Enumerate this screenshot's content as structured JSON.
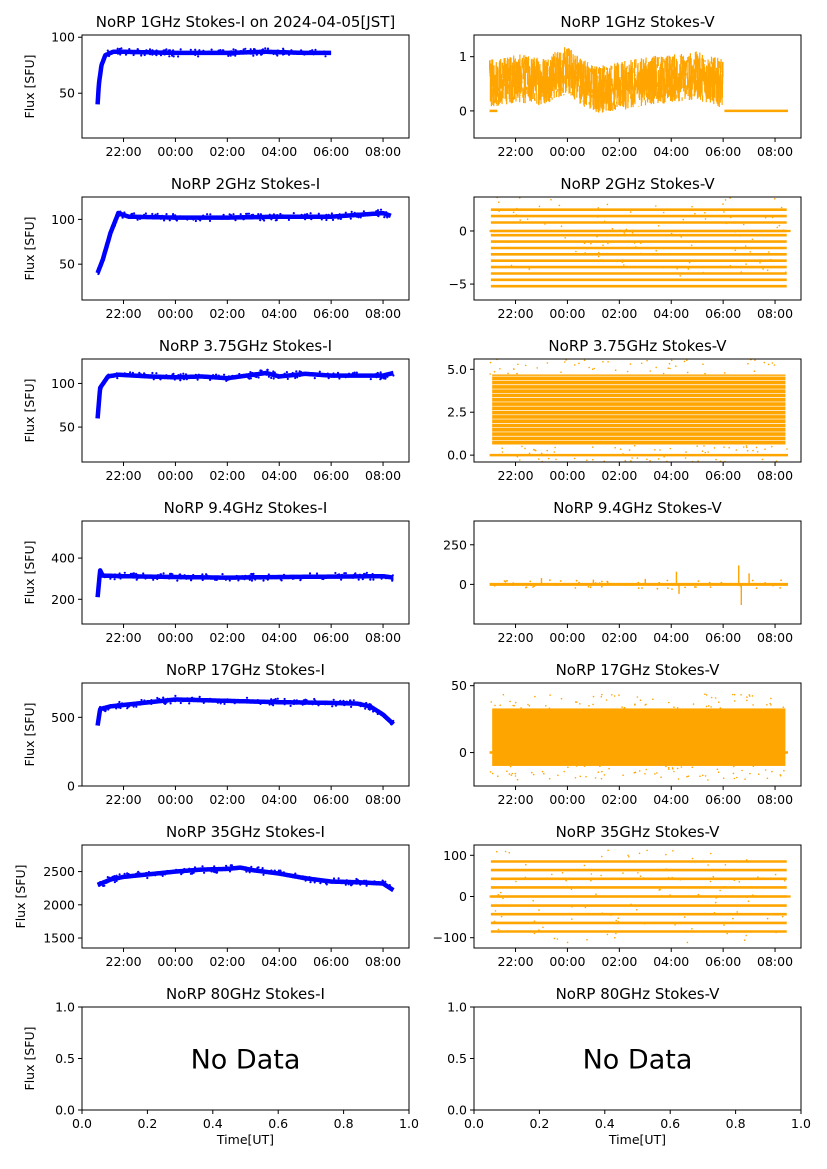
{
  "figure": {
    "xlabel": "Time[UT]",
    "ylabel": "Flux [SFU]",
    "nodata_text": "No Data",
    "colors": {
      "stokes_i": "#0000ff",
      "stokes_v": "#ffa500",
      "axes": "#000000",
      "background": "#ffffff"
    }
  },
  "chart_data": [
    {
      "id": "i1",
      "type": "scatter",
      "title": "NoRP 1GHz Stokes-I on 2024-04-05[JST]",
      "ylabel": "Flux [SFU]",
      "xlim": [
        20.4,
        33.0
      ],
      "ylim": [
        10,
        102
      ],
      "yticks": [
        50,
        100
      ],
      "ytick_labels": [
        "50",
        "100"
      ],
      "xticks": [
        22,
        24,
        26,
        28,
        30,
        32
      ],
      "xtick_labels": [
        "22:00",
        "00:00",
        "02:00",
        "04:00",
        "06:00",
        "08:00"
      ],
      "data_range": [
        21.0,
        30.0
      ],
      "series": [
        {
          "x": [
            21.0,
            21.05,
            21.15,
            21.3,
            21.6,
            22.0,
            24.0,
            26.0,
            27.5,
            29.0,
            30.0
          ],
          "y": [
            40,
            58,
            75,
            84,
            87,
            87,
            86,
            86,
            87,
            86,
            86
          ]
        }
      ]
    },
    {
      "id": "v1",
      "type": "scatter",
      "title": "NoRP 1GHz Stokes-V",
      "ylabel": "",
      "xlim": [
        20.4,
        33.0
      ],
      "ylim": [
        -0.5,
        1.4
      ],
      "yticks": [
        0,
        1
      ],
      "ytick_labels": [
        "0",
        "1"
      ],
      "xticks": [
        22,
        24,
        26,
        28,
        30,
        32
      ],
      "xtick_labels": [
        "22:00",
        "00:00",
        "02:00",
        "04:00",
        "06:00",
        "08:00"
      ],
      "data_range": [
        21.0,
        30.0
      ],
      "series": [
        {
          "x": [
            21.0,
            22.0,
            23.0,
            24.0,
            25.0,
            26.0,
            27.0,
            28.0,
            29.0,
            30.0,
            30.05,
            32.5
          ],
          "y": [
            0.5,
            0.6,
            0.55,
            0.75,
            0.4,
            0.45,
            0.55,
            0.6,
            0.65,
            0.5,
            0.0,
            0.0
          ]
        }
      ]
    },
    {
      "id": "i2",
      "type": "scatter",
      "title": "NoRP 2GHz Stokes-I",
      "ylabel": "Flux [SFU]",
      "xlim": [
        20.4,
        33.0
      ],
      "ylim": [
        10,
        125
      ],
      "yticks": [
        50,
        100
      ],
      "ytick_labels": [
        "50",
        "100"
      ],
      "xticks": [
        22,
        24,
        26,
        28,
        30,
        32
      ],
      "xtick_labels": [
        "22:00",
        "00:00",
        "02:00",
        "04:00",
        "06:00",
        "08:00"
      ],
      "data_range": [
        21.0,
        32.3
      ],
      "series": [
        {
          "x": [
            21.0,
            21.2,
            21.5,
            21.8,
            22.2,
            24.0,
            26.0,
            28.0,
            30.0,
            32.0,
            32.3
          ],
          "y": [
            40,
            55,
            85,
            107,
            103,
            102,
            102,
            103,
            103,
            107,
            104
          ]
        }
      ]
    },
    {
      "id": "v2",
      "type": "scatter",
      "title": "NoRP 2GHz Stokes-V",
      "ylabel": "",
      "xlim": [
        20.4,
        33.0
      ],
      "ylim": [
        -6.5,
        3.2
      ],
      "yticks": [
        -5,
        0
      ],
      "ytick_labels": [
        "−5",
        "0"
      ],
      "xticks": [
        22,
        24,
        26,
        28,
        30,
        32
      ],
      "xtick_labels": [
        "22:00",
        "00:00",
        "02:00",
        "04:00",
        "06:00",
        "08:00"
      ],
      "data_range": [
        21.0,
        32.5
      ],
      "series": [
        {
          "levels": [
            2.0,
            1.4,
            0.8,
            0.0,
            -0.4,
            -1.0,
            -1.6,
            -2.2,
            -2.8,
            -3.4,
            -4.0,
            -4.6,
            -5.2
          ]
        }
      ]
    },
    {
      "id": "i3",
      "type": "scatter",
      "title": "NoRP 3.75GHz Stokes-I",
      "ylabel": "Flux [SFU]",
      "xlim": [
        20.4,
        33.0
      ],
      "ylim": [
        10,
        128
      ],
      "yticks": [
        50,
        100
      ],
      "ytick_labels": [
        "50",
        "100"
      ],
      "xticks": [
        22,
        24,
        26,
        28,
        30,
        32
      ],
      "xtick_labels": [
        "22:00",
        "00:00",
        "02:00",
        "04:00",
        "06:00",
        "08:00"
      ],
      "data_range": [
        21.0,
        32.4
      ],
      "series": [
        {
          "x": [
            21.0,
            21.1,
            21.4,
            21.8,
            23.0,
            24.0,
            25.0,
            26.0,
            27.0,
            27.5,
            28.0,
            29.0,
            30.0,
            31.0,
            32.0,
            32.4
          ],
          "y": [
            60,
            95,
            108,
            110,
            108,
            107,
            108,
            106,
            110,
            112,
            108,
            111,
            109,
            109,
            109,
            112
          ]
        }
      ]
    },
    {
      "id": "v3",
      "type": "scatter",
      "title": "NoRP 3.75GHz Stokes-V",
      "ylabel": "",
      "xlim": [
        20.4,
        33.0
      ],
      "ylim": [
        -0.4,
        5.6
      ],
      "yticks": [
        0.0,
        2.5,
        5.0
      ],
      "ytick_labels": [
        "0.0",
        "2.5",
        "5.0"
      ],
      "xticks": [
        22,
        24,
        26,
        28,
        30,
        32
      ],
      "xtick_labels": [
        "22:00",
        "00:00",
        "02:00",
        "04:00",
        "06:00",
        "08:00"
      ],
      "data_range": [
        21.0,
        32.5
      ],
      "series": [
        {
          "band": [
            0.6,
            4.7
          ]
        }
      ]
    },
    {
      "id": "i4",
      "type": "scatter",
      "title": "NoRP 9.4GHz Stokes-I",
      "ylabel": "Flux [SFU]",
      "xlim": [
        20.4,
        33.0
      ],
      "ylim": [
        80,
        580
      ],
      "yticks": [
        200,
        400
      ],
      "ytick_labels": [
        "200",
        "400"
      ],
      "xticks": [
        22,
        24,
        26,
        28,
        30,
        32
      ],
      "xtick_labels": [
        "22:00",
        "00:00",
        "02:00",
        "04:00",
        "06:00",
        "08:00"
      ],
      "data_range": [
        21.0,
        32.4
      ],
      "series": [
        {
          "x": [
            21.0,
            21.1,
            21.2,
            22.0,
            24.0,
            26.0,
            28.0,
            30.0,
            32.0,
            32.4
          ],
          "y": [
            210,
            340,
            315,
            312,
            308,
            305,
            308,
            310,
            312,
            305
          ]
        }
      ]
    },
    {
      "id": "v4",
      "type": "scatter",
      "title": "NoRP 9.4GHz Stokes-V",
      "ylabel": "",
      "xlim": [
        20.4,
        33.0
      ],
      "ylim": [
        -250,
        400
      ],
      "yticks": [
        0,
        250
      ],
      "ytick_labels": [
        "0",
        "250"
      ],
      "xticks": [
        22,
        24,
        26,
        28,
        30,
        32
      ],
      "xtick_labels": [
        "22:00",
        "00:00",
        "02:00",
        "04:00",
        "06:00",
        "08:00"
      ],
      "data_range": [
        21.0,
        32.5
      ],
      "series": [
        {
          "x": [
            21.0,
            32.5
          ],
          "y": [
            0,
            0
          ]
        }
      ]
    },
    {
      "id": "i5",
      "type": "scatter",
      "title": "NoRP 17GHz Stokes-I",
      "ylabel": "Flux [SFU]",
      "xlim": [
        20.4,
        33.0
      ],
      "ylim": [
        0,
        750
      ],
      "yticks": [
        0,
        500
      ],
      "ytick_labels": [
        "0",
        "500"
      ],
      "xticks": [
        22,
        24,
        26,
        28,
        30,
        32
      ],
      "xtick_labels": [
        "22:00",
        "00:00",
        "02:00",
        "04:00",
        "06:00",
        "08:00"
      ],
      "data_range": [
        21.0,
        32.4
      ],
      "series": [
        {
          "x": [
            21.0,
            21.1,
            21.5,
            22.0,
            23.0,
            24.0,
            25.0,
            26.0,
            27.0,
            28.0,
            29.0,
            30.0,
            31.0,
            31.5,
            32.0,
            32.4
          ],
          "y": [
            440,
            560,
            580,
            590,
            610,
            630,
            625,
            620,
            615,
            610,
            608,
            605,
            600,
            580,
            520,
            450
          ]
        }
      ]
    },
    {
      "id": "v5",
      "type": "scatter",
      "title": "NoRP 17GHz Stokes-V",
      "ylabel": "",
      "xlim": [
        20.4,
        33.0
      ],
      "ylim": [
        -25,
        52
      ],
      "yticks": [
        0,
        50
      ],
      "ytick_labels": [
        "0",
        "50"
      ],
      "xticks": [
        22,
        24,
        26,
        28,
        30,
        32
      ],
      "xtick_labels": [
        "22:00",
        "00:00",
        "02:00",
        "04:00",
        "06:00",
        "08:00"
      ],
      "data_range": [
        21.0,
        32.5
      ],
      "series": [
        {
          "band": [
            -10,
            33
          ]
        }
      ]
    },
    {
      "id": "i6",
      "type": "scatter",
      "title": "NoRP 35GHz Stokes-I",
      "ylabel": "Flux [SFU]",
      "xlim": [
        20.4,
        33.0
      ],
      "ylim": [
        1350,
        2900
      ],
      "yticks": [
        1500,
        2000,
        2500
      ],
      "ytick_labels": [
        "1500",
        "2000",
        "2500"
      ],
      "xticks": [
        22,
        24,
        26,
        28,
        30,
        32
      ],
      "xtick_labels": [
        "22:00",
        "00:00",
        "02:00",
        "04:00",
        "06:00",
        "08:00"
      ],
      "data_range": [
        21.0,
        32.4
      ],
      "series": [
        {
          "x": [
            21.0,
            21.5,
            22.0,
            23.0,
            24.0,
            25.0,
            26.0,
            26.5,
            27.0,
            28.0,
            29.0,
            30.0,
            31.0,
            32.0,
            32.4
          ],
          "y": [
            2300,
            2380,
            2420,
            2460,
            2500,
            2530,
            2540,
            2560,
            2520,
            2470,
            2400,
            2350,
            2340,
            2320,
            2220
          ]
        }
      ]
    },
    {
      "id": "v6",
      "type": "scatter",
      "title": "NoRP 35GHz Stokes-V",
      "ylabel": "",
      "xlim": [
        20.4,
        33.0
      ],
      "ylim": [
        -125,
        125
      ],
      "yticks": [
        -100,
        0,
        100
      ],
      "ytick_labels": [
        "−100",
        "0",
        "100"
      ],
      "xticks": [
        22,
        24,
        26,
        28,
        30,
        32
      ],
      "xtick_labels": [
        "22:00",
        "00:00",
        "02:00",
        "04:00",
        "06:00",
        "08:00"
      ],
      "data_range": [
        21.0,
        32.5
      ],
      "series": [
        {
          "levels": [
            85,
            64,
            43,
            22,
            0,
            -22,
            -43,
            -64,
            -85
          ]
        }
      ]
    },
    {
      "id": "i7",
      "type": "scatter",
      "title": "NoRP 80GHz Stokes-I",
      "ylabel": "Flux [SFU]",
      "xlim": [
        0,
        1
      ],
      "ylim": [
        0,
        1
      ],
      "yticks": [
        0.0,
        0.5,
        1.0
      ],
      "ytick_labels": [
        "0.0",
        "0.5",
        "1.0"
      ],
      "xticks": [
        0.0,
        0.2,
        0.4,
        0.6,
        0.8,
        1.0
      ],
      "xtick_labels": [
        "0.0",
        "0.2",
        "0.4",
        "0.6",
        "0.8",
        "1.0"
      ],
      "xlabel": "Time[UT]",
      "nodata": true,
      "series": []
    },
    {
      "id": "v7",
      "type": "scatter",
      "title": "NoRP 80GHz Stokes-V",
      "ylabel": "",
      "xlim": [
        0,
        1
      ],
      "ylim": [
        0,
        1
      ],
      "yticks": [
        0.0,
        0.5,
        1.0
      ],
      "ytick_labels": [
        "0.0",
        "0.5",
        "1.0"
      ],
      "xticks": [
        0.0,
        0.2,
        0.4,
        0.6,
        0.8,
        1.0
      ],
      "xtick_labels": [
        "0.0",
        "0.2",
        "0.4",
        "0.6",
        "0.8",
        "1.0"
      ],
      "xlabel": "Time[UT]",
      "nodata": true,
      "series": []
    }
  ]
}
